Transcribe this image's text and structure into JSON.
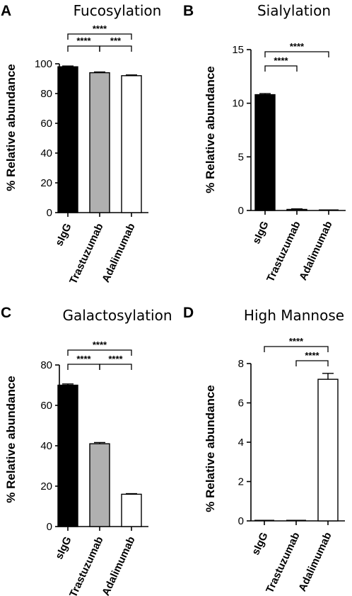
{
  "chart_data": [
    {
      "panel": "A",
      "type": "bar",
      "title": "Fucosylation",
      "ylabel": "% Relative abundance",
      "categories": [
        "sIgG",
        "Trastuzumab",
        "Adalimumab"
      ],
      "values": [
        98,
        94,
        92
      ],
      "errors": [
        0.5,
        0.5,
        0.5
      ],
      "colors": [
        "#000000",
        "#b0b0b0",
        "#ffffff"
      ],
      "ylim": [
        0,
        100
      ],
      "yticks": [
        0,
        20,
        40,
        60,
        80,
        100
      ],
      "significance": [
        {
          "from": 0,
          "to": 2,
          "label": "****"
        },
        {
          "from": 0,
          "to": 1,
          "label": "****"
        },
        {
          "from": 1,
          "to": 2,
          "label": "***"
        }
      ]
    },
    {
      "panel": "B",
      "type": "bar",
      "title": "Sialylation",
      "ylabel": "% Relative abundance",
      "categories": [
        "sIgG",
        "Trastuzumab",
        "Adalimumab"
      ],
      "values": [
        10.8,
        0.1,
        0
      ],
      "errors": [
        0.1,
        0.05,
        0
      ],
      "colors": [
        "#000000",
        "#b0b0b0",
        "#ffffff"
      ],
      "ylim": [
        0,
        15
      ],
      "yticks": [
        0,
        5,
        10,
        15
      ],
      "significance": [
        {
          "from": 0,
          "to": 2,
          "label": "****"
        },
        {
          "from": 0,
          "to": 1,
          "label": "****"
        }
      ]
    },
    {
      "panel": "C",
      "type": "bar",
      "title": "Galactosylation",
      "ylabel": "% Relative abundance",
      "categories": [
        "sIgG",
        "Trastuzumab",
        "Adalimumab"
      ],
      "values": [
        70,
        41,
        16
      ],
      "errors": [
        0.6,
        0.6,
        0.3
      ],
      "colors": [
        "#000000",
        "#b0b0b0",
        "#ffffff"
      ],
      "ylim": [
        0,
        80
      ],
      "yticks": [
        0,
        20,
        40,
        60,
        80
      ],
      "significance": [
        {
          "from": 0,
          "to": 2,
          "label": "****"
        },
        {
          "from": 0,
          "to": 1,
          "label": "****"
        },
        {
          "from": 1,
          "to": 2,
          "label": "****"
        }
      ]
    },
    {
      "panel": "D",
      "type": "bar",
      "title": "High Mannose",
      "ylabel": "% Relative abundance",
      "categories": [
        "sIgG",
        "Trastuzumab",
        "Adalimumab"
      ],
      "values": [
        0,
        0,
        7.2
      ],
      "errors": [
        0,
        0,
        0.3
      ],
      "colors": [
        "#000000",
        "#b0b0b0",
        "#ffffff"
      ],
      "ylim": [
        0,
        8
      ],
      "yticks": [
        0,
        2,
        4,
        6,
        8
      ],
      "significance": [
        {
          "from": 0,
          "to": 2,
          "label": "****"
        },
        {
          "from": 1,
          "to": 2,
          "label": "****"
        }
      ]
    }
  ]
}
